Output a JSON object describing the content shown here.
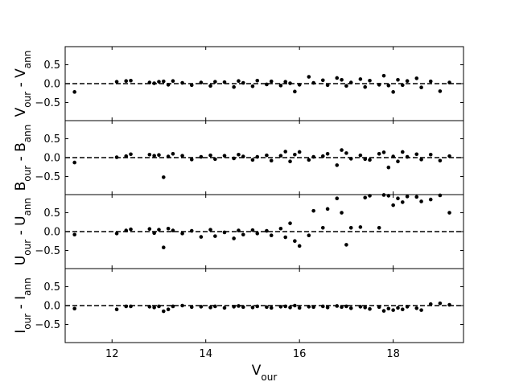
{
  "chart_data": [
    {
      "type": "scatter",
      "color": "#000000",
      "ylabel": [
        {
          "text": "V"
        },
        {
          "text": "our",
          "sub": true
        },
        {
          "text": " - "
        },
        {
          "text": "V"
        },
        {
          "text": "ann",
          "sub": true
        }
      ],
      "xlim": [
        11,
        19.5
      ],
      "xticks": [
        12,
        14,
        16,
        18
      ],
      "show_xticklabels": false,
      "ylim": [
        -0.98,
        0.98
      ],
      "yticks": [
        {
          "value": -0.5,
          "label": "−0.5"
        },
        {
          "value": 0,
          "label": "0.0"
        },
        0.5
      ],
      "hline": 0,
      "x": [
        11.2,
        12.1,
        12.3,
        12.4,
        12.8,
        12.9,
        13.0,
        13.1,
        13.2,
        13.3,
        13.5,
        13.7,
        13.9,
        14.1,
        14.2,
        14.4,
        14.6,
        14.7,
        14.8,
        15.0,
        15.1,
        15.3,
        15.4,
        15.6,
        15.7,
        15.8,
        15.9,
        16.0,
        16.2,
        16.3,
        16.5,
        16.6,
        16.8,
        16.9,
        17.0,
        17.1,
        17.3,
        17.4,
        17.5,
        17.7,
        17.8,
        17.9,
        18.0,
        18.1,
        18.2,
        18.3,
        18.5,
        18.6,
        18.8,
        19.0,
        19.2
      ],
      "values": [
        -0.22,
        0.05,
        0.07,
        0.08,
        0.03,
        0.01,
        0.05,
        0.06,
        -0.03,
        0.07,
        0.02,
        -0.04,
        0.03,
        -0.06,
        0.05,
        0.04,
        -0.09,
        0.07,
        0.02,
        -0.07,
        0.08,
        -0.02,
        0.06,
        -0.05,
        0.05,
        0.01,
        -0.21,
        -0.03,
        0.18,
        0.02,
        0.09,
        -0.04,
        0.15,
        0.1,
        -0.06,
        0.03,
        0.12,
        -0.09,
        0.08,
        -0.03,
        0.21,
        -0.05,
        -0.22,
        0.1,
        -0.04,
        0.07,
        0.14,
        -0.1,
        0.06,
        -0.2,
        0.03
      ]
    },
    {
      "type": "scatter",
      "color": "#000000",
      "ylabel": [
        {
          "text": "B"
        },
        {
          "text": "our",
          "sub": true
        },
        {
          "text": " - "
        },
        {
          "text": "B"
        },
        {
          "text": "ann",
          "sub": true
        }
      ],
      "xlim": [
        11,
        19.5
      ],
      "xticks": [
        12,
        14,
        16,
        18
      ],
      "show_xticklabels": false,
      "ylim": [
        -0.98,
        0.98
      ],
      "yticks": [
        {
          "value": -0.5,
          "label": "−0.5"
        },
        {
          "value": 0,
          "label": "0.0"
        },
        0.5
      ],
      "hline": 0,
      "x": [
        11.2,
        12.1,
        12.3,
        12.4,
        12.8,
        12.9,
        13.0,
        13.1,
        13.2,
        13.3,
        13.5,
        13.7,
        13.9,
        14.1,
        14.2,
        14.4,
        14.6,
        14.7,
        14.8,
        15.0,
        15.1,
        15.3,
        15.4,
        15.6,
        15.7,
        15.8,
        15.9,
        16.0,
        16.2,
        16.3,
        16.5,
        16.6,
        16.8,
        16.9,
        17.0,
        17.1,
        17.3,
        17.4,
        17.5,
        17.7,
        17.8,
        17.9,
        18.0,
        18.1,
        18.2,
        18.3,
        18.5,
        18.6,
        18.8,
        19.0,
        19.2
      ],
      "values": [
        -0.13,
        0.01,
        0.04,
        0.09,
        0.08,
        0.05,
        0.07,
        -0.52,
        0.03,
        0.1,
        0.05,
        -0.05,
        0.02,
        0.06,
        -0.04,
        0.05,
        -0.02,
        0.08,
        0.03,
        -0.06,
        0.02,
        0.06,
        -0.08,
        0.05,
        0.16,
        -0.1,
        0.08,
        0.15,
        -0.06,
        0.02,
        0.04,
        0.1,
        -0.2,
        0.2,
        0.12,
        -0.03,
        0.06,
        -0.04,
        -0.06,
        0.1,
        0.14,
        -0.26,
        0.03,
        -0.1,
        0.15,
        0.02,
        0.09,
        -0.05,
        0.08,
        -0.08,
        0.04
      ]
    },
    {
      "type": "scatter",
      "color": "#000000",
      "ylabel": [
        {
          "text": "U"
        },
        {
          "text": "our",
          "sub": true
        },
        {
          "text": " - "
        },
        {
          "text": "U"
        },
        {
          "text": "ann",
          "sub": true
        }
      ],
      "xlim": [
        11,
        19.5
      ],
      "xticks": [
        12,
        14,
        16,
        18
      ],
      "show_xticklabels": false,
      "ylim": [
        -0.98,
        0.98
      ],
      "yticks": [
        {
          "value": -0.5,
          "label": "−0.5"
        },
        {
          "value": 0,
          "label": "0.0"
        },
        0.5
      ],
      "hline": 0,
      "x": [
        11.2,
        12.1,
        12.3,
        12.4,
        12.8,
        12.9,
        13.0,
        13.1,
        13.2,
        13.3,
        13.5,
        13.7,
        13.9,
        14.1,
        14.2,
        14.4,
        14.6,
        14.7,
        14.8,
        15.0,
        15.1,
        15.3,
        15.4,
        15.6,
        15.7,
        15.8,
        15.9,
        16.0,
        16.2,
        16.3,
        16.5,
        16.6,
        16.8,
        16.9,
        17.0,
        17.1,
        17.3,
        17.4,
        17.5,
        17.7,
        17.8,
        17.9,
        18.0,
        18.1,
        18.2,
        18.3,
        18.5,
        18.6,
        18.8,
        19.0,
        19.2
      ],
      "values": [
        -0.08,
        -0.05,
        0.03,
        0.06,
        0.07,
        -0.04,
        0.05,
        -0.42,
        0.08,
        0.03,
        -0.05,
        0.02,
        -0.14,
        0.05,
        -0.12,
        -0.02,
        -0.18,
        0.03,
        -0.08,
        0.04,
        -0.05,
        0.02,
        -0.1,
        0.08,
        -0.15,
        0.22,
        -0.25,
        -0.38,
        -0.1,
        0.55,
        0.1,
        0.6,
        0.88,
        0.5,
        -0.35,
        0.1,
        0.12,
        0.9,
        0.95,
        0.1,
        0.97,
        0.95,
        0.7,
        0.88,
        0.78,
        0.93,
        0.92,
        0.8,
        0.85,
        0.96,
        0.5
      ]
    },
    {
      "type": "scatter",
      "color": "#000000",
      "ylabel": [
        {
          "text": "I"
        },
        {
          "text": "our",
          "sub": true
        },
        {
          "text": " - "
        },
        {
          "text": "I"
        },
        {
          "text": "ann",
          "sub": true
        }
      ],
      "xlabel": [
        {
          "text": "V"
        },
        {
          "text": "our",
          "sub": true
        }
      ],
      "xlim": [
        11,
        19.5
      ],
      "xticks": [
        12,
        14,
        16,
        18
      ],
      "show_xticklabels": true,
      "ylim": [
        -0.98,
        0.98
      ],
      "yticks": [
        {
          "value": -0.5,
          "label": "−0.5"
        },
        {
          "value": 0,
          "label": "0.0"
        },
        0.5
      ],
      "hline": 0,
      "x": [
        11.2,
        12.1,
        12.3,
        12.4,
        12.8,
        12.9,
        13.0,
        13.1,
        13.2,
        13.3,
        13.5,
        13.7,
        13.9,
        14.1,
        14.2,
        14.4,
        14.6,
        14.7,
        14.8,
        15.0,
        15.1,
        15.3,
        15.4,
        15.6,
        15.7,
        15.8,
        15.9,
        16.0,
        16.2,
        16.3,
        16.5,
        16.6,
        16.8,
        16.9,
        17.0,
        17.1,
        17.3,
        17.4,
        17.5,
        17.7,
        17.8,
        17.9,
        18.0,
        18.1,
        18.2,
        18.3,
        18.5,
        18.6,
        18.8,
        19.0,
        19.2
      ],
      "values": [
        -0.08,
        -0.1,
        -0.02,
        -0.02,
        -0.03,
        -0.05,
        -0.02,
        -0.15,
        -0.1,
        -0.02,
        0.0,
        -0.04,
        -0.03,
        -0.05,
        -0.02,
        -0.06,
        -0.03,
        -0.01,
        -0.04,
        -0.05,
        -0.02,
        -0.04,
        -0.06,
        -0.03,
        -0.02,
        -0.05,
        0.0,
        -0.06,
        -0.03,
        -0.04,
        -0.02,
        -0.05,
        -0.01,
        -0.04,
        -0.02,
        -0.07,
        -0.03,
        -0.05,
        -0.09,
        -0.04,
        -0.14,
        -0.08,
        -0.12,
        -0.06,
        -0.1,
        -0.03,
        -0.07,
        -0.12,
        0.04,
        0.06,
        0.02
      ]
    }
  ]
}
